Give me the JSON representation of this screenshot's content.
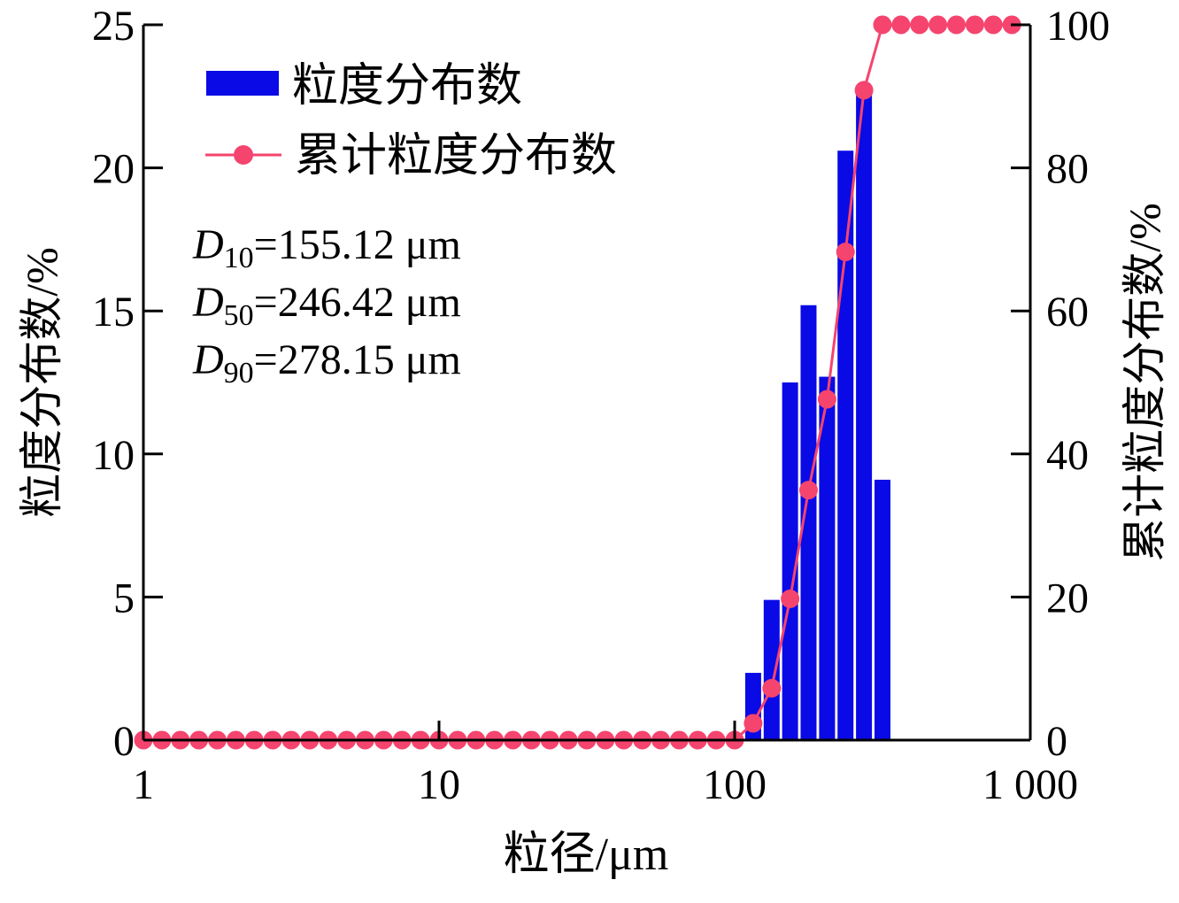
{
  "chart_data": {
    "type": "bar+line",
    "xlabel": "粒径/μm",
    "ylabel": "粒度分布数/%",
    "ylabel_right": "累计粒度分布数/%",
    "x_scale": "log",
    "xlim": [
      1,
      1000
    ],
    "ylim": [
      0,
      25
    ],
    "ylim_right": [
      0,
      100
    ],
    "x_ticks": [
      1,
      10,
      100,
      1000
    ],
    "x_tick_labels": [
      "1",
      "10",
      "100",
      "1 000"
    ],
    "y_ticks": [
      0,
      5,
      10,
      15,
      20,
      25
    ],
    "y_tick_labels": [
      "0",
      "5",
      "10",
      "15",
      "20",
      "25"
    ],
    "y_right_ticks": [
      0,
      20,
      40,
      60,
      80,
      100
    ],
    "y_right_tick_labels": [
      "0",
      "20",
      "40",
      "60",
      "80",
      "100"
    ],
    "grid": false,
    "legend_position": "top-left",
    "colors": {
      "bars": "#0a0ae6",
      "line": "#f5446e"
    },
    "series": [
      {
        "name": "粒度分布数",
        "type": "bar",
        "axis": "left",
        "x": [
          115.5,
          133.4,
          154.0,
          177.8,
          205.4,
          237.1,
          273.8,
          316.2
        ],
        "values": [
          2.35,
          4.9,
          12.5,
          15.2,
          12.7,
          20.6,
          22.6,
          9.1
        ]
      },
      {
        "name": "累计粒度分布数",
        "type": "line",
        "axis": "right",
        "x": [
          1,
          1.155,
          1.334,
          1.54,
          1.778,
          2.054,
          2.371,
          2.738,
          3.162,
          3.652,
          4.217,
          4.87,
          5.623,
          6.494,
          7.499,
          8.66,
          10,
          11.55,
          13.34,
          15.4,
          17.78,
          20.54,
          23.71,
          27.38,
          31.62,
          36.52,
          42.17,
          48.7,
          56.23,
          64.94,
          74.99,
          86.6,
          100,
          115.5,
          133.4,
          154.0,
          177.8,
          205.4,
          237.1,
          273.8,
          316.2,
          365.2,
          421.7,
          487.0,
          562.3,
          649.4,
          749.9,
          866.0
        ],
        "values": [
          0,
          0,
          0,
          0,
          0,
          0,
          0,
          0,
          0,
          0,
          0,
          0,
          0,
          0,
          0,
          0,
          0,
          0,
          0,
          0,
          0,
          0,
          0,
          0,
          0,
          0,
          0,
          0,
          0,
          0,
          0,
          0,
          0,
          2.35,
          7.25,
          19.75,
          34.95,
          47.65,
          68.25,
          90.85,
          100,
          100,
          100,
          100,
          100,
          100,
          100,
          100
        ]
      }
    ],
    "annotations": [
      {
        "symbol": "D",
        "sub": "10",
        "text": "=155.12 μm"
      },
      {
        "symbol": "D",
        "sub": "50",
        "text": "=246.42 μm"
      },
      {
        "symbol": "D",
        "sub": "90",
        "text": "=278.15 μm"
      }
    ]
  }
}
